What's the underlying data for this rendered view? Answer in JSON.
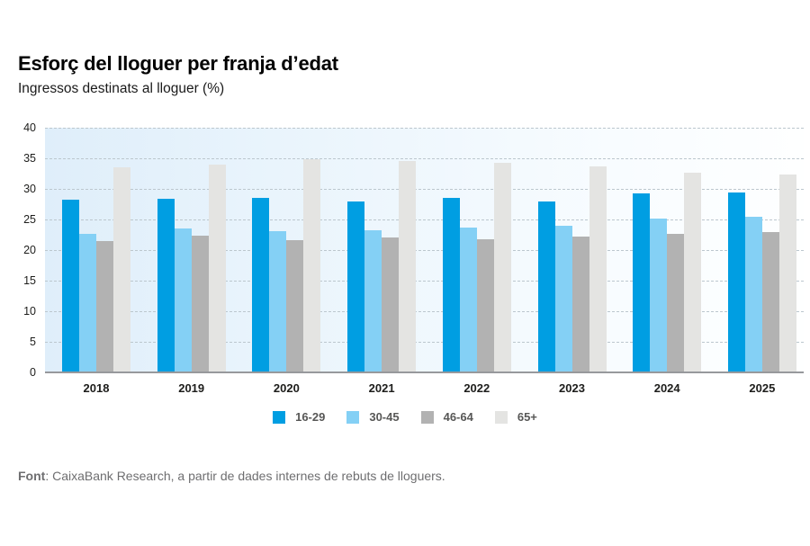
{
  "title": "Esforç del lloguer per franja d’edat",
  "subtitle": "Ingressos destinats al lloguer (%)",
  "footer": {
    "label": "Font",
    "text": ": CaixaBank Research, a partir de dades internes de rebuts de lloguers."
  },
  "colors": {
    "accent_blue": "#009ee2",
    "light_blue": "#84d0f5",
    "gray": "#b2b2b2",
    "light_gray": "#e4e4e2",
    "gridline": "#bcc7ce",
    "axis_line": "#97999c",
    "plot_bg_left": "#dfeefa",
    "plot_bg_right": "#feffff",
    "text_dark": "#1d1d1b",
    "legend_text": "#575756",
    "footer_text": "#6e6e70"
  },
  "chart_data": {
    "type": "bar",
    "title": "Esforç del lloguer per franja d’edat",
    "subtitle": "Ingressos destinats al lloguer (%)",
    "categories": [
      "2018",
      "2019",
      "2020",
      "2021",
      "2022",
      "2023",
      "2024",
      "2025"
    ],
    "series": [
      {
        "name": "16-29",
        "color": "#009ee2",
        "values": [
          28.3,
          28.4,
          28.5,
          28.0,
          28.6,
          27.9,
          29.2,
          29.4
        ]
      },
      {
        "name": "30-45",
        "color": "#84d0f5",
        "values": [
          22.6,
          23.5,
          23.1,
          23.2,
          23.7,
          24.0,
          25.1,
          25.4
        ]
      },
      {
        "name": "46-64",
        "color": "#b2b2b2",
        "values": [
          21.5,
          22.3,
          21.6,
          22.0,
          21.7,
          22.2,
          22.7,
          22.9
        ]
      },
      {
        "name": "65+",
        "color": "#e4e4e2",
        "values": [
          33.6,
          33.9,
          34.8,
          34.6,
          34.2,
          33.7,
          32.6,
          32.4
        ]
      }
    ],
    "xlabel": "",
    "ylabel": "Ingressos destinats al lloguer (%)",
    "ylim": [
      0,
      40
    ],
    "yticks": [
      0,
      5,
      10,
      15,
      20,
      25,
      30,
      35,
      40
    ],
    "grid": "horizontal dashed, on",
    "legend_position": "bottom",
    "plot_background": "horizontal gradient light blue to white"
  }
}
